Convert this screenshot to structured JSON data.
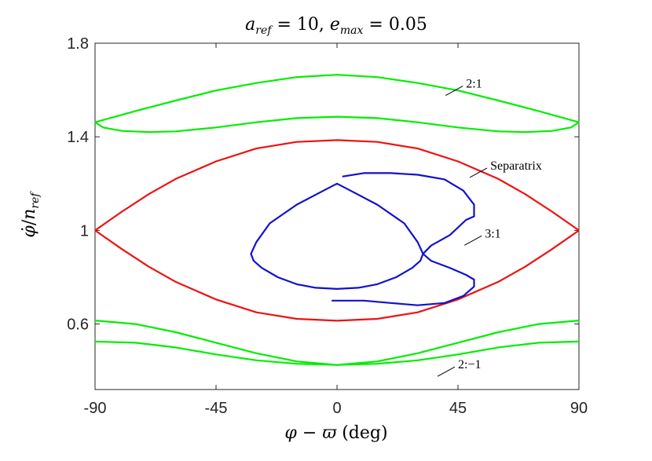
{
  "chart_data": {
    "type": "line",
    "title": "a_ref = 10, e_max = 0.05",
    "xlabel": "φ − ϖ (deg)",
    "ylabel": "φ̇ / n_ref",
    "xlim": [
      -90,
      90
    ],
    "ylim": [
      0.32,
      1.8
    ],
    "xticks": [
      -90,
      -45,
      0,
      45,
      90
    ],
    "xtick_labels": [
      "-90",
      "-45",
      "0",
      "45",
      "90"
    ],
    "yticks": [
      0.6,
      1,
      1.4,
      1.8
    ],
    "ytick_labels": [
      "0.6",
      "1",
      "1.4",
      "1.8"
    ],
    "grid": false,
    "series": [
      {
        "name": "2:1",
        "color": "#00ee00",
        "curves": [
          {
            "x": [
              -90,
              -75,
              -60,
              -45,
              -30,
              -15,
              0,
              15,
              30,
              45,
              60,
              75,
              90
            ],
            "y": [
              1.462,
              1.51,
              1.555,
              1.598,
              1.63,
              1.655,
              1.665,
              1.655,
              1.63,
              1.598,
              1.555,
              1.51,
              1.462
            ]
          },
          {
            "x": [
              -90,
              -87,
              -80,
              -70,
              -60,
              -45,
              -30,
              -15,
              0,
              15,
              30,
              45,
              60,
              70,
              80,
              87,
              90
            ],
            "y": [
              1.462,
              1.44,
              1.425,
              1.42,
              1.423,
              1.44,
              1.462,
              1.48,
              1.486,
              1.48,
              1.462,
              1.44,
              1.423,
              1.42,
              1.425,
              1.44,
              1.462
            ]
          }
        ]
      },
      {
        "name": "Separatrix",
        "color": "#ee1111",
        "curves": [
          {
            "x": [
              -90,
              -80,
              -70,
              -60,
              -45,
              -30,
              -15,
              0,
              15,
              30,
              45,
              60,
              70,
              80,
              90
            ],
            "y": [
              1.0,
              1.08,
              1.155,
              1.22,
              1.295,
              1.35,
              1.378,
              1.386,
              1.378,
              1.35,
              1.295,
              1.22,
              1.155,
              1.08,
              1.0
            ]
          },
          {
            "x": [
              -90,
              -80,
              -70,
              -60,
              -45,
              -30,
              -15,
              0,
              15,
              30,
              45,
              60,
              70,
              80,
              90
            ],
            "y": [
              1.0,
              0.92,
              0.845,
              0.78,
              0.705,
              0.65,
              0.622,
              0.614,
              0.622,
              0.65,
              0.705,
              0.78,
              0.845,
              0.92,
              1.0
            ]
          }
        ]
      },
      {
        "name": "3:1",
        "color": "#1111cc",
        "curves": [
          {
            "x": [
              2,
              10,
              20,
              30,
              40,
              47,
              51,
              51,
              48,
              42,
              35,
              32,
              31,
              28,
              22,
              15,
              8,
              0,
              -8,
              -15,
              -22,
              -28,
              -31,
              -32,
              -30,
              -25,
              -15,
              -5,
              0,
              5,
              15,
              25,
              30,
              32,
              35,
              42,
              48,
              51,
              51,
              47,
              40,
              30,
              20,
              10,
              -2
            ],
            "y": [
              1.23,
              1.245,
              1.245,
              1.238,
              1.218,
              1.17,
              1.11,
              1.06,
              1.045,
              0.98,
              0.935,
              0.9,
              0.87,
              0.84,
              0.8,
              0.77,
              0.755,
              0.75,
              0.755,
              0.77,
              0.8,
              0.84,
              0.87,
              0.9,
              0.95,
              1.03,
              1.11,
              1.17,
              1.2,
              1.17,
              1.11,
              1.03,
              0.95,
              0.9,
              0.87,
              0.84,
              0.81,
              0.79,
              0.76,
              0.72,
              0.69,
              0.68,
              0.69,
              0.7,
              0.7
            ]
          }
        ]
      },
      {
        "name": "2:−1",
        "color": "#00ee00",
        "curves": [
          {
            "x": [
              -90,
              -75,
              -60,
              -45,
              -30,
              -15,
              0,
              15,
              30,
              45,
              60,
              75,
              90
            ],
            "y": [
              0.615,
              0.6,
              0.565,
              0.52,
              0.475,
              0.44,
              0.425,
              0.44,
              0.475,
              0.52,
              0.565,
              0.6,
              0.615
            ]
          },
          {
            "x": [
              -90,
              -75,
              -60,
              -45,
              -30,
              -15,
              0,
              15,
              30,
              45,
              60,
              75,
              90
            ],
            "y": [
              0.525,
              0.52,
              0.5,
              0.47,
              0.445,
              0.43,
              0.425,
              0.43,
              0.445,
              0.47,
              0.5,
              0.52,
              0.525
            ]
          }
        ]
      }
    ],
    "annotations": [
      {
        "text": "2:1",
        "at": [
          48,
          1.61
        ]
      },
      {
        "text": "Separatrix",
        "at": [
          57,
          1.26
        ]
      },
      {
        "text": "3:1",
        "at": [
          55,
          0.97
        ]
      },
      {
        "text": "2:−1",
        "at": [
          45,
          0.41
        ]
      }
    ]
  }
}
